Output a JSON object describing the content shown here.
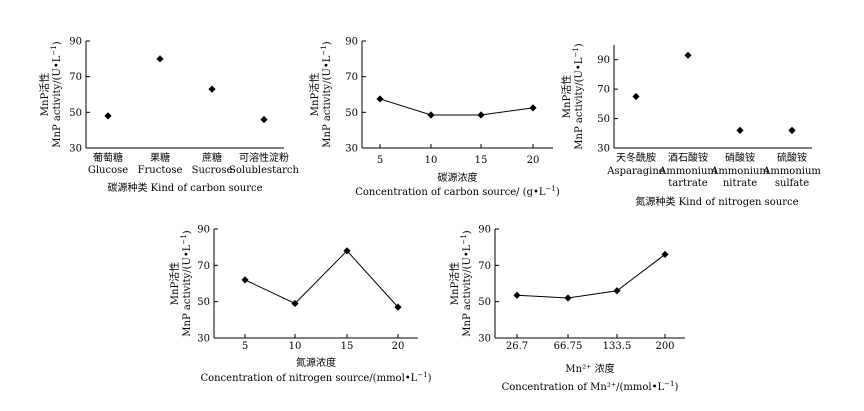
{
  "chart_data": [
    {
      "type": "scatter",
      "ylabel_cn": "MnP活性",
      "ylabel_en": "MnP activity/(U•L",
      "ylabel_sup": "−1",
      "ylabel_close": ")",
      "ylim": [
        30,
        90
      ],
      "yticks": [
        "30",
        "50",
        "70",
        "90"
      ],
      "categories": [
        {
          "cn": "葡萄糖",
          "en1": "Glucose",
          "en2": ""
        },
        {
          "cn": "果糖",
          "en1": "Fructose",
          "en2": ""
        },
        {
          "cn": "蔗糖",
          "en1": "Sucrose",
          "en2": ""
        },
        {
          "cn": "可溶性淀粉",
          "en1": "Solublestarch",
          "en2": ""
        }
      ],
      "values": [
        48,
        80,
        63,
        46
      ],
      "xlabel": "碳源种类  Kind of carbon source",
      "xlabel2": "",
      "xlabel2_sup": "",
      "xlabel2_close": ""
    },
    {
      "type": "line",
      "ylabel_cn": "MnP活性",
      "ylabel_en": "MnP activity/(U•L",
      "ylabel_sup": "−1",
      "ylabel_close": ")",
      "ylim": [
        30,
        90
      ],
      "yticks": [
        "30",
        "50",
        "70",
        "90"
      ],
      "categories": [
        {
          "cn": "",
          "en1": "5",
          "en2": ""
        },
        {
          "cn": "",
          "en1": "10",
          "en2": ""
        },
        {
          "cn": "",
          "en1": "15",
          "en2": ""
        },
        {
          "cn": "",
          "en1": "20",
          "en2": ""
        }
      ],
      "values": [
        57.5,
        48.5,
        48.5,
        52.5
      ],
      "xlabel": "碳源浓度",
      "xlabel2": "Concentration of carbon source/ (g•L",
      "xlabel2_sup": "−1",
      "xlabel2_close": ")"
    },
    {
      "type": "scatter",
      "ylabel_cn": "MnP活性",
      "ylabel_en": "MnP activity/(U•L",
      "ylabel_sup": "−1",
      "ylabel_close": ")",
      "ylim": [
        30,
        100
      ],
      "yticks": [
        "30",
        "50",
        "70",
        "90"
      ],
      "categories": [
        {
          "cn": "天冬酰胺",
          "en1": "Asparagine",
          "en2": ""
        },
        {
          "cn": "酒石酸铵",
          "en1": "Ammonium",
          "en2": "tartrate"
        },
        {
          "cn": "硝酸铵",
          "en1": "Ammonium",
          "en2": "nitrate"
        },
        {
          "cn": "硫酸铵",
          "en1": "Ammonium",
          "en2": "sulfate"
        }
      ],
      "values": [
        65,
        93,
        42,
        42
      ],
      "xlabel": "氮源种类  Kind of nitrogen source",
      "xlabel2": "",
      "xlabel2_sup": "",
      "xlabel2_close": ""
    },
    {
      "type": "line",
      "ylabel_cn": "MnP活性",
      "ylabel_en": "MnP activity/(U•L",
      "ylabel_sup": "−1",
      "ylabel_close": ")",
      "ylim": [
        30,
        90
      ],
      "yticks": [
        "30",
        "50",
        "70",
        "90"
      ],
      "categories": [
        {
          "cn": "",
          "en1": "5",
          "en2": ""
        },
        {
          "cn": "",
          "en1": "10",
          "en2": ""
        },
        {
          "cn": "",
          "en1": "15",
          "en2": ""
        },
        {
          "cn": "",
          "en1": "20",
          "en2": ""
        }
      ],
      "values": [
        62,
        49,
        78,
        47
      ],
      "xlabel": "氮源浓度",
      "xlabel2": "Concentration of nitrogen source/(mmol•L",
      "xlabel2_sup": "−1",
      "xlabel2_close": ")"
    },
    {
      "type": "line",
      "ylabel_cn": "MnP活性",
      "ylabel_en": "MnP activity/(U•L",
      "ylabel_sup": "−1",
      "ylabel_close": ")",
      "ylim": [
        30,
        90
      ],
      "yticks": [
        "30",
        "50",
        "70",
        "90"
      ],
      "categories": [
        {
          "cn": "",
          "en1": "26.7",
          "en2": ""
        },
        {
          "cn": "",
          "en1": "66.75",
          "en2": ""
        },
        {
          "cn": "",
          "en1": "133.5",
          "en2": ""
        },
        {
          "cn": "",
          "en1": "200",
          "en2": ""
        }
      ],
      "values": [
        53.5,
        52,
        56,
        76
      ],
      "xlabel": "Mn²⁺ 浓度",
      "xlabel2": "Concentration of Mn²⁺/(mmol•L",
      "xlabel2_sup": "−1",
      "xlabel2_close": ")"
    }
  ]
}
